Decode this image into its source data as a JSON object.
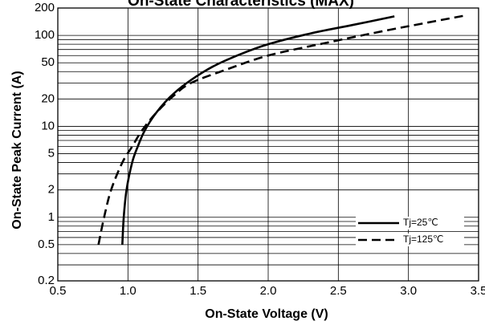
{
  "chart_data": {
    "type": "line",
    "title": "On-State Characteristics (MAX)",
    "xlabel": "On-State Voltage (V)",
    "ylabel": "On-State Peak Current (A)",
    "xlim": [
      0.5,
      3.5
    ],
    "ylim": [
      0.2,
      200
    ],
    "yscale": "log",
    "grid": true,
    "legend_position": "bottom-right",
    "x_ticks": [
      "0.5",
      "1.0",
      "1.5",
      "2.0",
      "2.5",
      "3.0",
      "3.5"
    ],
    "x_tick_values": [
      0.5,
      1.0,
      1.5,
      2.0,
      2.5,
      3.0,
      3.5
    ],
    "y_ticks": [
      "0.2",
      "0.5",
      "1",
      "2",
      "5",
      "10",
      "20",
      "50",
      "100",
      "200"
    ],
    "y_tick_values": [
      0.2,
      0.5,
      1,
      2,
      5,
      10,
      20,
      50,
      100,
      200
    ],
    "series": [
      {
        "name": "Tj=25℃",
        "style": "solid",
        "color": "#000000",
        "points": [
          [
            0.96,
            0.5
          ],
          [
            0.97,
            1
          ],
          [
            0.99,
            2
          ],
          [
            1.03,
            4
          ],
          [
            1.07,
            6
          ],
          [
            1.12,
            9
          ],
          [
            1.2,
            14
          ],
          [
            1.3,
            21
          ],
          [
            1.42,
            30
          ],
          [
            1.6,
            45
          ],
          [
            1.8,
            62
          ],
          [
            2.0,
            80
          ],
          [
            2.3,
            105
          ],
          [
            2.6,
            130
          ],
          [
            2.9,
            162
          ]
        ]
      },
      {
        "name": "Tj=125℃",
        "style": "dashed",
        "color": "#000000",
        "points": [
          [
            0.79,
            0.5
          ],
          [
            0.83,
            1
          ],
          [
            0.88,
            2
          ],
          [
            0.96,
            4
          ],
          [
            1.03,
            6
          ],
          [
            1.1,
            9
          ],
          [
            1.2,
            14
          ],
          [
            1.33,
            22
          ],
          [
            1.45,
            30
          ],
          [
            1.7,
            42
          ],
          [
            2.0,
            60
          ],
          [
            2.4,
            82
          ],
          [
            2.8,
            110
          ],
          [
            3.1,
            135
          ],
          [
            3.4,
            165
          ]
        ]
      }
    ]
  }
}
